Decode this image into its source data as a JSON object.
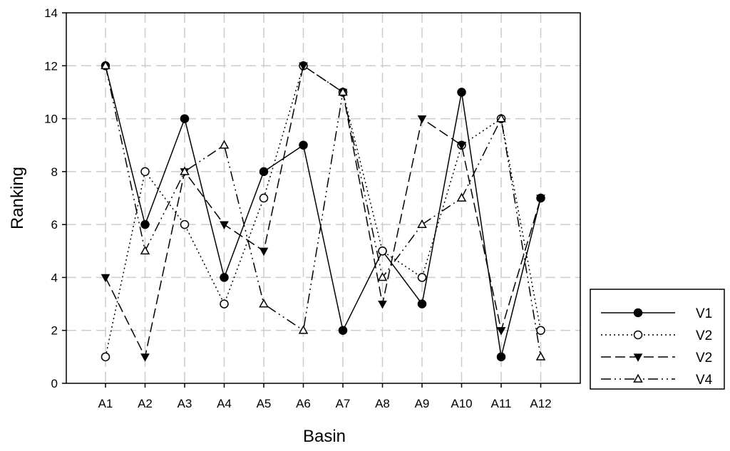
{
  "chart_data": {
    "type": "line",
    "xlabel": "Basin",
    "ylabel": "Ranking",
    "categories": [
      "A1",
      "A2",
      "A3",
      "A4",
      "A5",
      "A6",
      "A7",
      "A8",
      "A9",
      "A10",
      "A11",
      "A12"
    ],
    "ylim": [
      0,
      14
    ],
    "yticks": [
      0,
      2,
      4,
      6,
      8,
      10,
      12,
      14
    ],
    "grid": true,
    "legend_position": "bottom-right, outside plot",
    "series": [
      {
        "name": "V1",
        "marker": "filled-circle",
        "line": "solid",
        "values": [
          12,
          6,
          10,
          4,
          8,
          9,
          2,
          5,
          3,
          11,
          1,
          7
        ]
      },
      {
        "name": "V2",
        "marker": "open-circle",
        "line": "dotted",
        "values": [
          1,
          8,
          6,
          3,
          7,
          12,
          11,
          5,
          4,
          9,
          10,
          2
        ]
      },
      {
        "name": "V2",
        "marker": "filled-triangle-down",
        "line": "dashed",
        "values": [
          4,
          1,
          8,
          6,
          5,
          12,
          11,
          3,
          10,
          9,
          2,
          7
        ]
      },
      {
        "name": "V4",
        "marker": "open-triangle-up",
        "line": "dash-dot-dot",
        "values": [
          12,
          5,
          8,
          9,
          3,
          2,
          11,
          4,
          6,
          7,
          10,
          1
        ]
      }
    ]
  }
}
